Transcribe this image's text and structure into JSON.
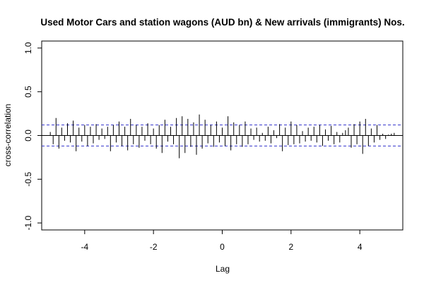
{
  "chart_data": {
    "type": "bar",
    "title": "Used Motor Cars and station wagons (AUD bn) & New arrivals (immigrants) Nos.",
    "xlabel": "Lag",
    "ylabel": "cross-correlation",
    "xlim": [
      -5.25,
      5.25
    ],
    "ylim": [
      -1.08,
      1.08
    ],
    "x_ticks": [
      -4,
      -2,
      0,
      2,
      4
    ],
    "y_ticks": [
      -1.0,
      -0.5,
      0.0,
      0.5,
      1.0
    ],
    "confidence_limit": 0.12,
    "colors": {
      "series": "#000000",
      "confidence": "#3333cc",
      "zero_line": "#000000"
    },
    "x": [
      -5.0,
      -4.9167,
      -4.8333,
      -4.75,
      -4.6667,
      -4.5833,
      -4.5,
      -4.4167,
      -4.3333,
      -4.25,
      -4.1667,
      -4.0833,
      -4.0,
      -3.9167,
      -3.8333,
      -3.75,
      -3.6667,
      -3.5833,
      -3.5,
      -3.4167,
      -3.3333,
      -3.25,
      -3.1667,
      -3.0833,
      -3.0,
      -2.9167,
      -2.8333,
      -2.75,
      -2.6667,
      -2.5833,
      -2.5,
      -2.4167,
      -2.3333,
      -2.25,
      -2.1667,
      -2.0833,
      -2.0,
      -1.9167,
      -1.8333,
      -1.75,
      -1.6667,
      -1.5833,
      -1.5,
      -1.4167,
      -1.3333,
      -1.25,
      -1.1667,
      -1.0833,
      -1.0,
      -0.9167,
      -0.8333,
      -0.75,
      -0.6667,
      -0.5833,
      -0.5,
      -0.4167,
      -0.3333,
      -0.25,
      -0.1667,
      -0.0833,
      0.0,
      0.0833,
      0.1667,
      0.25,
      0.3333,
      0.4167,
      0.5,
      0.5833,
      0.6667,
      0.75,
      0.8333,
      0.9167,
      1.0,
      1.0833,
      1.1667,
      1.25,
      1.3333,
      1.4167,
      1.5,
      1.5833,
      1.6667,
      1.75,
      1.8333,
      1.9167,
      2.0,
      2.0833,
      2.1667,
      2.25,
      2.3333,
      2.4167,
      2.5,
      2.5833,
      2.6667,
      2.75,
      2.8333,
      2.9167,
      3.0,
      3.0833,
      3.1667,
      3.25,
      3.3333,
      3.4167,
      3.5,
      3.5833,
      3.6667,
      3.75,
      3.8333,
      3.9167,
      4.0,
      4.0833,
      4.1667,
      4.25,
      4.3333,
      4.4167,
      4.5,
      4.5833,
      4.6667,
      4.75,
      4.8333,
      4.9167,
      5.0
    ],
    "values": [
      0.04,
      -0.1,
      0.2,
      -0.15,
      0.09,
      -0.06,
      0.14,
      -0.08,
      0.17,
      -0.18,
      0.09,
      -0.07,
      0.12,
      -0.12,
      0.1,
      -0.09,
      0.13,
      -0.05,
      0.08,
      -0.04,
      0.1,
      -0.18,
      0.12,
      -0.08,
      0.16,
      -0.12,
      0.1,
      -0.17,
      0.19,
      -0.1,
      0.12,
      -0.14,
      0.1,
      -0.06,
      0.14,
      -0.1,
      0.08,
      -0.15,
      0.12,
      -0.2,
      0.18,
      -0.07,
      0.1,
      -0.1,
      0.2,
      -0.26,
      0.22,
      -0.2,
      0.19,
      -0.13,
      0.15,
      -0.22,
      0.24,
      -0.15,
      0.18,
      -0.09,
      0.12,
      -0.13,
      0.16,
      -0.08,
      0.09,
      -0.12,
      0.22,
      -0.17,
      0.15,
      -0.1,
      0.12,
      -0.13,
      0.16,
      -0.1,
      0.08,
      -0.05,
      0.09,
      -0.07,
      0.03,
      -0.06,
      0.1,
      -0.09,
      0.06,
      -0.03,
      0.13,
      -0.18,
      0.09,
      -0.11,
      0.16,
      -0.1,
      0.12,
      -0.09,
      0.05,
      -0.07,
      0.09,
      -0.06,
      0.1,
      -0.08,
      0.12,
      -0.12,
      0.07,
      -0.06,
      0.11,
      -0.1,
      0.04,
      -0.08,
      0.03,
      0.06,
      0.09,
      -0.14,
      0.13,
      -0.1,
      0.16,
      -0.21,
      0.19,
      -0.12,
      0.08,
      -0.08,
      0.12,
      -0.05,
      0.02,
      -0.04,
      0.01,
      0.02,
      0.03
    ]
  }
}
